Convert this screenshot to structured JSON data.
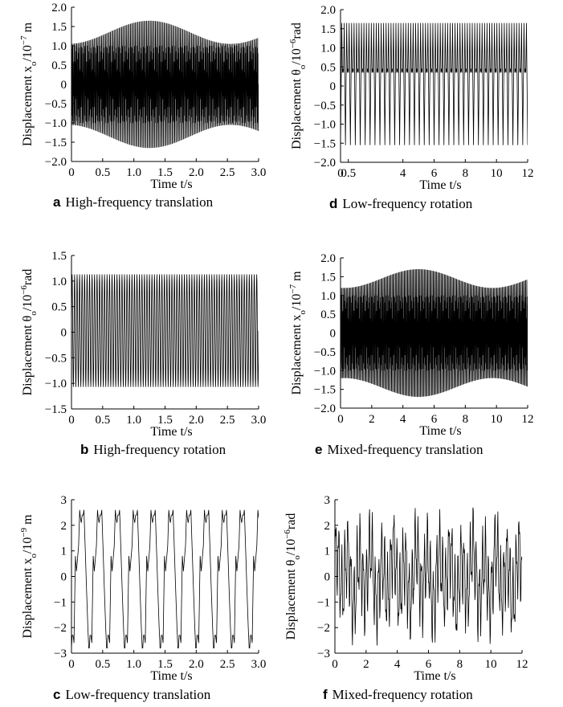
{
  "chart_data": [
    {
      "id": "a",
      "type": "line",
      "letter": "a",
      "caption": "High-frequency translation",
      "xlabel": "Time t/s",
      "ylabel": "Displacement x",
      "ylabel_sub": "o",
      "ylabel_unit": "/10",
      "ylabel_exp": "−7",
      "ylabel_tail": " m",
      "xlim": [
        0,
        3
      ],
      "ylim": [
        -2,
        2
      ],
      "xticks": [
        0,
        0.5,
        1.0,
        1.5,
        2.0,
        2.5,
        3.0
      ],
      "xtick_labels": [
        "0",
        "0.5",
        "1.0",
        "1.5",
        "2.0",
        "2.5",
        "3.0"
      ],
      "yticks": [
        -2,
        -1.5,
        -1,
        -0.5,
        0,
        0.5,
        1,
        1.5,
        2
      ],
      "ytick_labels": [
        "−2.0",
        "−1.5",
        "−1.0",
        "−0.5",
        "0",
        "0.5",
        "1.0",
        "1.5",
        "2.0"
      ],
      "series": [
        {
          "signal": "beat",
          "center": 0,
          "amplitude_min": 1.05,
          "amplitude_max": 1.65,
          "inner_band": 1.0,
          "carrier_cycles_per_unit": 50,
          "envelope_period": 2.6,
          "envelope_phase": 1.25,
          "x_range": [
            0,
            3
          ]
        }
      ]
    },
    {
      "id": "d",
      "type": "line",
      "letter": "d",
      "caption": "Low-frequency rotation",
      "xlabel": "Time t/s",
      "ylabel": "Displacement θ",
      "ylabel_sub": "o",
      "ylabel_unit": "/10",
      "ylabel_exp": "−6",
      "ylabel_tail": "rad",
      "xlim": [
        0,
        12
      ],
      "ylim": [
        -2,
        2
      ],
      "xticks": [
        0,
        0.5,
        4,
        6,
        8,
        10,
        12
      ],
      "xtick_labels": [
        "0",
        "0.5",
        "4",
        "6",
        "8",
        "10",
        "12"
      ],
      "yticks": [
        -2,
        -1.5,
        -1,
        -0.5,
        0,
        0.5,
        1,
        1.5,
        2
      ],
      "ytick_labels": [
        "−2.0",
        "−1.5",
        "−1.0",
        "−0.5",
        "0",
        "0.5",
        "1.0",
        "1.5",
        "2.0"
      ],
      "series": [
        {
          "signal": "spikes",
          "low": -1.55,
          "high": 1.65,
          "mid_band": 0.35,
          "cycles": 38,
          "x_range": [
            0,
            12
          ]
        }
      ]
    },
    {
      "id": "b",
      "type": "line",
      "letter": "b",
      "caption": "High-frequency rotation",
      "xlabel": "Time t/s",
      "ylabel": "Displacement θ",
      "ylabel_sub": "o",
      "ylabel_unit": "/10",
      "ylabel_exp": "−6",
      "ylabel_tail": "rad",
      "xlim": [
        0,
        3
      ],
      "ylim": [
        -1.5,
        1.5
      ],
      "xticks": [
        0,
        0.5,
        1.0,
        1.5,
        2.0,
        2.5,
        3.0
      ],
      "xtick_labels": [
        "0",
        "0.5",
        "1.0",
        "1.5",
        "2.0",
        "2.5",
        "3.0"
      ],
      "yticks": [
        -1.5,
        -1,
        -0.5,
        0,
        0.5,
        1,
        1.5
      ],
      "ytick_labels": [
        "−1.5",
        "−1.0",
        "−0.5",
        "0",
        "0.5",
        "1.0",
        "1.5"
      ],
      "series": [
        {
          "signal": "sine",
          "center": 0.03,
          "amplitude": 1.1,
          "cycles": 75,
          "x_range": [
            0,
            3
          ]
        }
      ]
    },
    {
      "id": "e",
      "type": "line",
      "letter": "e",
      "caption": "Mixed-frequency translation",
      "xlabel": "Time t/s",
      "ylabel": "Displacement x",
      "ylabel_sub": "o",
      "ylabel_unit": "/10",
      "ylabel_exp": "−7",
      "ylabel_tail": " m",
      "xlim": [
        0,
        12
      ],
      "ylim": [
        -2,
        2
      ],
      "xticks": [
        0,
        2,
        4,
        6,
        8,
        10,
        12
      ],
      "xtick_labels": [
        "0",
        "2",
        "4",
        "6",
        "8",
        "10",
        "12"
      ],
      "yticks": [
        -2,
        -1.5,
        -1,
        -0.5,
        0,
        0.5,
        1,
        1.5,
        2
      ],
      "ytick_labels": [
        "−2.0",
        "−1.5",
        "−1.0",
        "−0.5",
        "0",
        "0.5",
        "1.0",
        "1.5",
        "2.0"
      ],
      "series": [
        {
          "signal": "beat",
          "center": 0,
          "amplitude_min": 1.2,
          "amplitude_max": 1.7,
          "inner_band": 1.0,
          "carrier_cycles_per_unit": 14,
          "envelope_period": 9.5,
          "envelope_phase": 5.0,
          "x_range": [
            0,
            12
          ]
        }
      ]
    },
    {
      "id": "c",
      "type": "line",
      "letter": "c",
      "caption": "Low-frequency translation",
      "xlabel": "Time t/s",
      "ylabel": "Displacement x",
      "ylabel_sub": "o",
      "ylabel_unit": "/10",
      "ylabel_exp": "−9",
      "ylabel_tail": " m",
      "xlim": [
        0,
        3
      ],
      "ylim": [
        -3,
        3
      ],
      "xticks": [
        0,
        0.5,
        1.0,
        1.5,
        2.0,
        2.5,
        3.0
      ],
      "xtick_labels": [
        "0",
        "0.5",
        "1.0",
        "1.5",
        "2.0",
        "2.5",
        "3.0"
      ],
      "yticks": [
        -3,
        -2,
        -1,
        0,
        1,
        2,
        3
      ],
      "ytick_labels": [
        "−3",
        "−2",
        "−1",
        "0",
        "1",
        "2",
        "3"
      ],
      "series": [
        {
          "signal": "square",
          "period": 0.2857,
          "high": 2.6,
          "low": -2.8,
          "plateau_high": 2.1,
          "plateau_low": -2.3,
          "x_range": [
            0,
            3
          ]
        }
      ]
    },
    {
      "id": "f",
      "type": "line",
      "letter": "f",
      "caption": "Mixed-frequency rotation",
      "xlabel": "Time t/s",
      "ylabel": "Displacement θ",
      "ylabel_sub": "o",
      "ylabel_unit": "/10",
      "ylabel_exp": "−6",
      "ylabel_tail": "rad",
      "xlim": [
        0,
        12
      ],
      "ylim": [
        -3,
        3
      ],
      "xticks": [
        0,
        2,
        4,
        6,
        8,
        10,
        12
      ],
      "xtick_labels": [
        "0",
        "2",
        "4",
        "6",
        "8",
        "10",
        "12"
      ],
      "yticks": [
        -3,
        -2,
        -1,
        0,
        1,
        2,
        3
      ],
      "ytick_labels": [
        "−3",
        "−2",
        "−1",
        "0",
        "1",
        "2",
        "3"
      ],
      "series": [
        {
          "signal": "mixed",
          "amplitude": 2.7,
          "cycles": 60,
          "x_range": [
            0,
            12
          ]
        }
      ]
    }
  ]
}
